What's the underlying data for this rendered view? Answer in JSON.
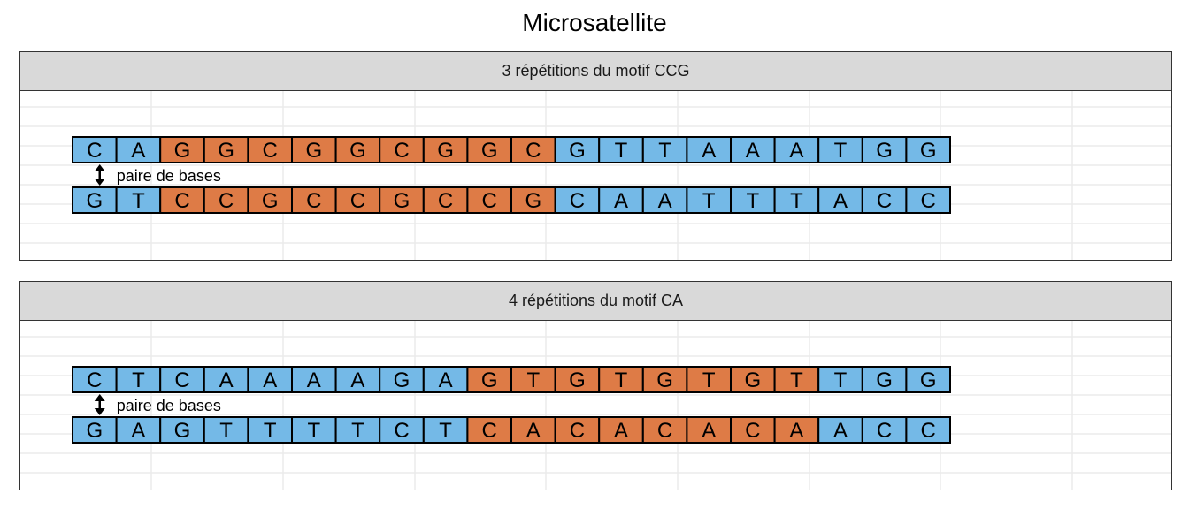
{
  "title": "Microsatellite",
  "colors": {
    "flank": "#74b9e7",
    "repeat": "#de7b46",
    "strip": "#d9d9d9",
    "grid": "#ebebeb"
  },
  "panels": [
    {
      "strip_label": "3 répétitions du motif CCG",
      "top_strand": [
        "C",
        "A",
        "G",
        "G",
        "C",
        "G",
        "G",
        "C",
        "G",
        "G",
        "C",
        "G",
        "T",
        "T",
        "A",
        "A",
        "A",
        "T",
        "G",
        "G"
      ],
      "bottom_strand": [
        "G",
        "T",
        "C",
        "C",
        "G",
        "C",
        "C",
        "G",
        "C",
        "C",
        "G",
        "C",
        "A",
        "A",
        "T",
        "T",
        "T",
        "A",
        "C",
        "C"
      ],
      "repeat_range": [
        2,
        10
      ],
      "pair_label": "paire de bases"
    },
    {
      "strip_label": "4 répétitions du motif CA",
      "top_strand": [
        "C",
        "T",
        "C",
        "A",
        "A",
        "A",
        "A",
        "G",
        "A",
        "G",
        "T",
        "G",
        "T",
        "G",
        "T",
        "G",
        "T",
        "T",
        "G",
        "G"
      ],
      "bottom_strand": [
        "G",
        "A",
        "G",
        "T",
        "T",
        "T",
        "T",
        "C",
        "T",
        "C",
        "A",
        "C",
        "A",
        "C",
        "A",
        "C",
        "A",
        "A",
        "C",
        "C"
      ],
      "repeat_range": [
        9,
        16
      ],
      "pair_label": "paire de bases"
    }
  ]
}
